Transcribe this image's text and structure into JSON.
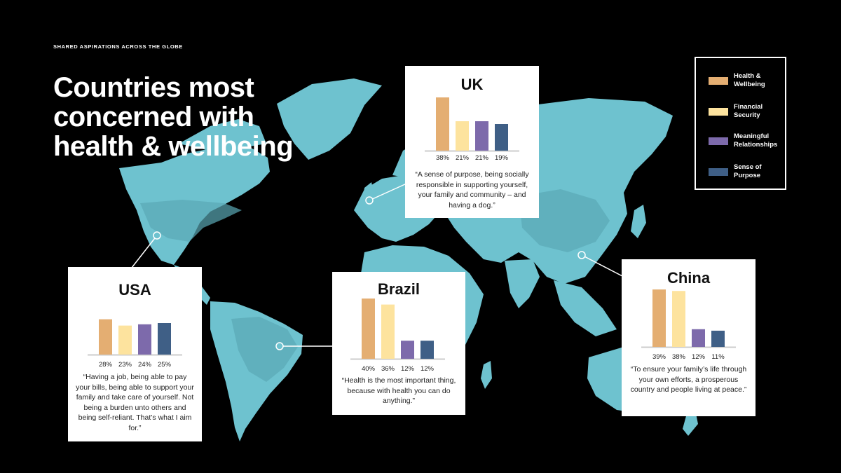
{
  "header": {
    "eyebrow": "SHARED ASPIRATIONS ACROSS THE GLOBE",
    "title_lines": [
      "Countries most",
      "concerned with",
      "health & wellbeing"
    ]
  },
  "colors": {
    "background": "#000000",
    "map": "#6ec2cf",
    "health": "#e4ae72",
    "financial": "#fde39e",
    "relationships": "#7d6aab",
    "purpose": "#3f5f86"
  },
  "legend": {
    "items": [
      {
        "label_line1": "Health &",
        "label_line2": "Wellbeing",
        "color": "#e4ae72"
      },
      {
        "label_line1": "Financial",
        "label_line2": "Security",
        "color": "#fde39e"
      },
      {
        "label_line1": "Meaningful",
        "label_line2": "Relationships",
        "color": "#7d6aab"
      },
      {
        "label_line1": "Sense of",
        "label_line2": "Purpose",
        "color": "#3f5f86"
      }
    ]
  },
  "chart_data": [
    {
      "type": "bar",
      "title": "UK",
      "categories": [
        "Health & Wellbeing",
        "Financial Security",
        "Meaningful Relationships",
        "Sense of Purpose"
      ],
      "values": [
        38,
        21,
        21,
        19
      ],
      "value_labels": [
        "38%",
        "21%",
        "21%",
        "19%"
      ],
      "ylim": [
        0,
        40
      ],
      "grid": false,
      "quote": "“A sense of purpose, being socially responsible in supporting yourself, your family and community – and having a dog.”"
    },
    {
      "type": "bar",
      "title": "USA",
      "categories": [
        "Health & Wellbeing",
        "Financial Security",
        "Meaningful Relationships",
        "Sense of Purpose"
      ],
      "values": [
        28,
        23,
        24,
        25
      ],
      "value_labels": [
        "28%",
        "23%",
        "24%",
        "25%"
      ],
      "ylim": [
        0,
        40
      ],
      "grid": false,
      "quote": "“Having a job, being able to pay your bills, being able to support your family and take care of yourself. Not being a burden unto others and being self-reliant. That’s what I aim for.”"
    },
    {
      "type": "bar",
      "title": "Brazil",
      "categories": [
        "Health & Wellbeing",
        "Financial Security",
        "Meaningful Relationships",
        "Sense of Purpose"
      ],
      "values": [
        40,
        36,
        12,
        12
      ],
      "value_labels": [
        "40%",
        "36%",
        "12%",
        "12%"
      ],
      "ylim": [
        0,
        40
      ],
      "grid": false,
      "quote": "“Health is the most important thing, because with health you can do anything.”"
    },
    {
      "type": "bar",
      "title": "China",
      "categories": [
        "Health & Wellbeing",
        "Financial Security",
        "Meaningful Relationships",
        "Sense of Purpose"
      ],
      "values": [
        39,
        38,
        12,
        11
      ],
      "value_labels": [
        "39%",
        "38%",
        "12%",
        "11%"
      ],
      "ylim": [
        0,
        40
      ],
      "grid": false,
      "quote": "“To ensure your family’s life through your own efforts, a prosperous country and people living at peace.”"
    }
  ]
}
